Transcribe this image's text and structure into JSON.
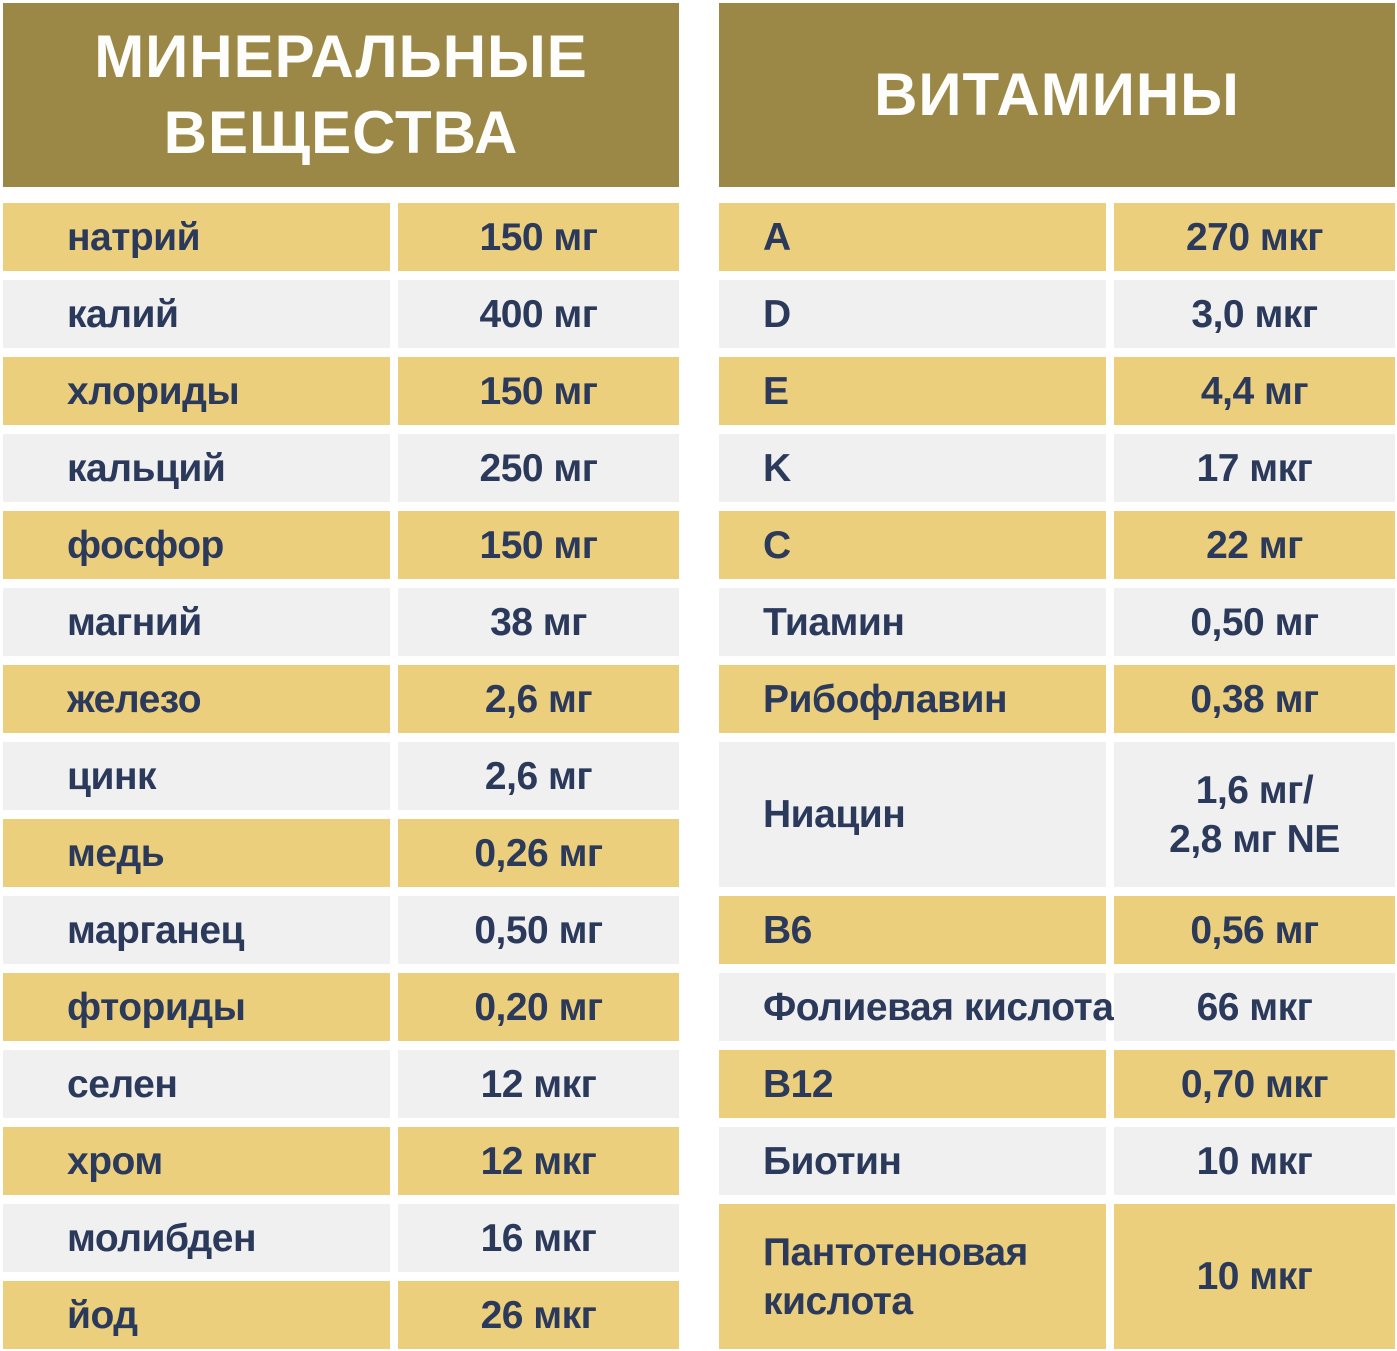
{
  "colors": {
    "header_background": "#9B8846",
    "header_text": "#FDFDFB",
    "row_gold": "#ECCF7D",
    "row_gray": "#F0F0F1",
    "text_navy": "#2B3A5B",
    "page_background": "#FFFFFF"
  },
  "tables": [
    {
      "id": "minerals",
      "title": "МИНЕРАЛЬНЫЕ ВЕЩЕСТВА",
      "title_lines": [
        "МИНЕРАЛЬНЫЕ",
        "ВЕЩЕСТВА"
      ],
      "rows": [
        {
          "name": "натрий",
          "value": "150 мг"
        },
        {
          "name": "калий",
          "value": "400 мг"
        },
        {
          "name": "хлориды",
          "value": "150 мг"
        },
        {
          "name": "кальций",
          "value": "250 мг"
        },
        {
          "name": "фосфор",
          "value": "150 мг"
        },
        {
          "name": "магний",
          "value": "38 мг"
        },
        {
          "name": "железо",
          "value": "2,6 мг"
        },
        {
          "name": "цинк",
          "value": "2,6 мг"
        },
        {
          "name": "медь",
          "value": "0,26 мг"
        },
        {
          "name": "марганец",
          "value": "0,50 мг"
        },
        {
          "name": "фториды",
          "value": "0,20 мг"
        },
        {
          "name": "селен",
          "value": "12 мкг"
        },
        {
          "name": "хром",
          "value": "12 мкг"
        },
        {
          "name": "молибден",
          "value": "16 мкг"
        },
        {
          "name": "йод",
          "value": "26 мкг"
        }
      ]
    },
    {
      "id": "vitamins",
      "title": "ВИТАМИНЫ",
      "title_lines": [
        "ВИТАМИНЫ"
      ],
      "rows": [
        {
          "name": "A",
          "value": "270 мкг"
        },
        {
          "name": "D",
          "value": "3,0 мкг"
        },
        {
          "name": "E",
          "value": "4,4 мг"
        },
        {
          "name": "K",
          "value": "17 мкг"
        },
        {
          "name": "C",
          "value": "22 мг"
        },
        {
          "name": "Тиамин",
          "value": "0,50 мг"
        },
        {
          "name": "Рибофлавин",
          "value": "0,38 мг"
        },
        {
          "name": "Ниацин",
          "value": "1,6 мг/ 2,8 мг NE",
          "value_lines": [
            "1,6 мг/",
            "2,8 мг NE"
          ],
          "tall": true
        },
        {
          "name": "B6",
          "value": "0,56 мг"
        },
        {
          "name": "Фолиевая кислота",
          "value": "66 мкг"
        },
        {
          "name": "B12",
          "value": "0,70 мкг"
        },
        {
          "name": "Биотин",
          "value": "10 мкг"
        },
        {
          "name": "Пантотеновая кислота",
          "name_lines": [
            "Пантотеновая",
            "кислота"
          ],
          "value": "10 мкг",
          "tall": true
        }
      ]
    }
  ]
}
